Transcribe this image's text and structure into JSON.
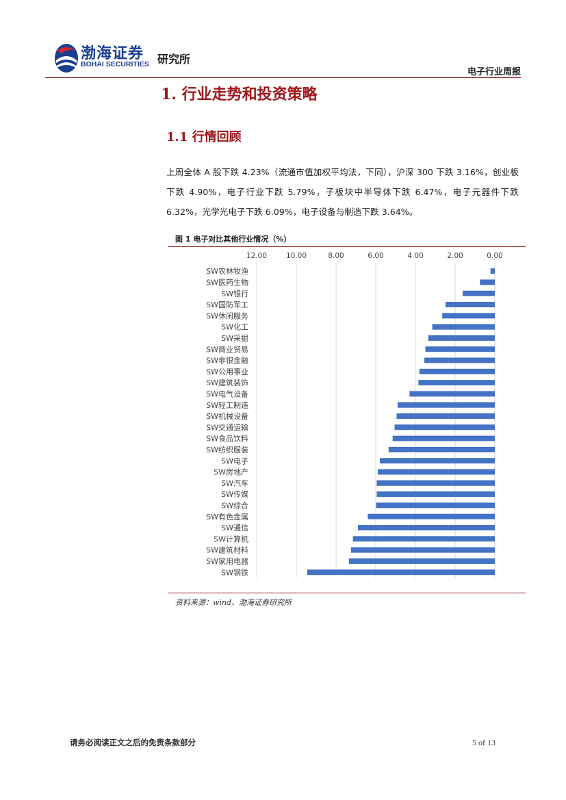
{
  "header": {
    "logo_cn": "渤海证券",
    "logo_en": "BOHAI SECURITIES",
    "logo_suffix": "研究所",
    "report_type": "电子行业周报"
  },
  "section": {
    "h1": "1. 行业走势和投资策略",
    "h2": "1.1 行情回顾",
    "paragraph": "上周全体 A 股下跌 4.23%（流通市值加权平均法，下同），沪深 300 下跌 3.16%，创业板下跌 4.90%，电子行业下跌 5.79%，子板块中半导体下跌 6.47%，电子元器件下跌 6.32%，光学光电子下跌 6.09%，电子设备与制造下跌 3.64%。"
  },
  "figure": {
    "title": "图 1 电子对比其他行业情况（%）",
    "source": "资料来源：wind、渤海证券研究所"
  },
  "chart_data": {
    "type": "bar",
    "orientation": "horizontal",
    "x_reversed": true,
    "xlim": [
      0,
      12
    ],
    "x_ticks": [
      "12.00",
      "10.00",
      "8.00",
      "6.00",
      "4.00",
      "2.00",
      "0.00"
    ],
    "x_axis_position": "top",
    "grid": true,
    "bar_color": "#4472c4",
    "categories": [
      "SW农林牧渔",
      "SW医药生物",
      "SW银行",
      "SW国防军工",
      "SW休闲服务",
      "SW化工",
      "SW采掘",
      "SW商业贸易",
      "SW非银金融",
      "SW公用事业",
      "SW建筑装饰",
      "SW电气设备",
      "SW轻工制造",
      "SW机械设备",
      "SW交通运输",
      "SW食品饮料",
      "SW纺织服装",
      "SW电子",
      "SW房地产",
      "SW汽车",
      "SW传媒",
      "SW综合",
      "SW有色金属",
      "SW通信",
      "SW计算机",
      "SW建筑材料",
      "SW家用电器",
      "SW钢铁"
    ],
    "values": [
      0.22,
      0.75,
      1.62,
      2.48,
      2.65,
      3.15,
      3.35,
      3.5,
      3.55,
      3.8,
      3.85,
      4.3,
      4.9,
      4.95,
      5.05,
      5.15,
      5.35,
      5.79,
      5.9,
      5.95,
      5.95,
      5.98,
      6.4,
      6.9,
      7.15,
      7.25,
      7.35,
      9.45
    ]
  },
  "footer": {
    "disclaimer": "请务必阅读正文之后的免责条款部分",
    "page": "5 of 13"
  }
}
